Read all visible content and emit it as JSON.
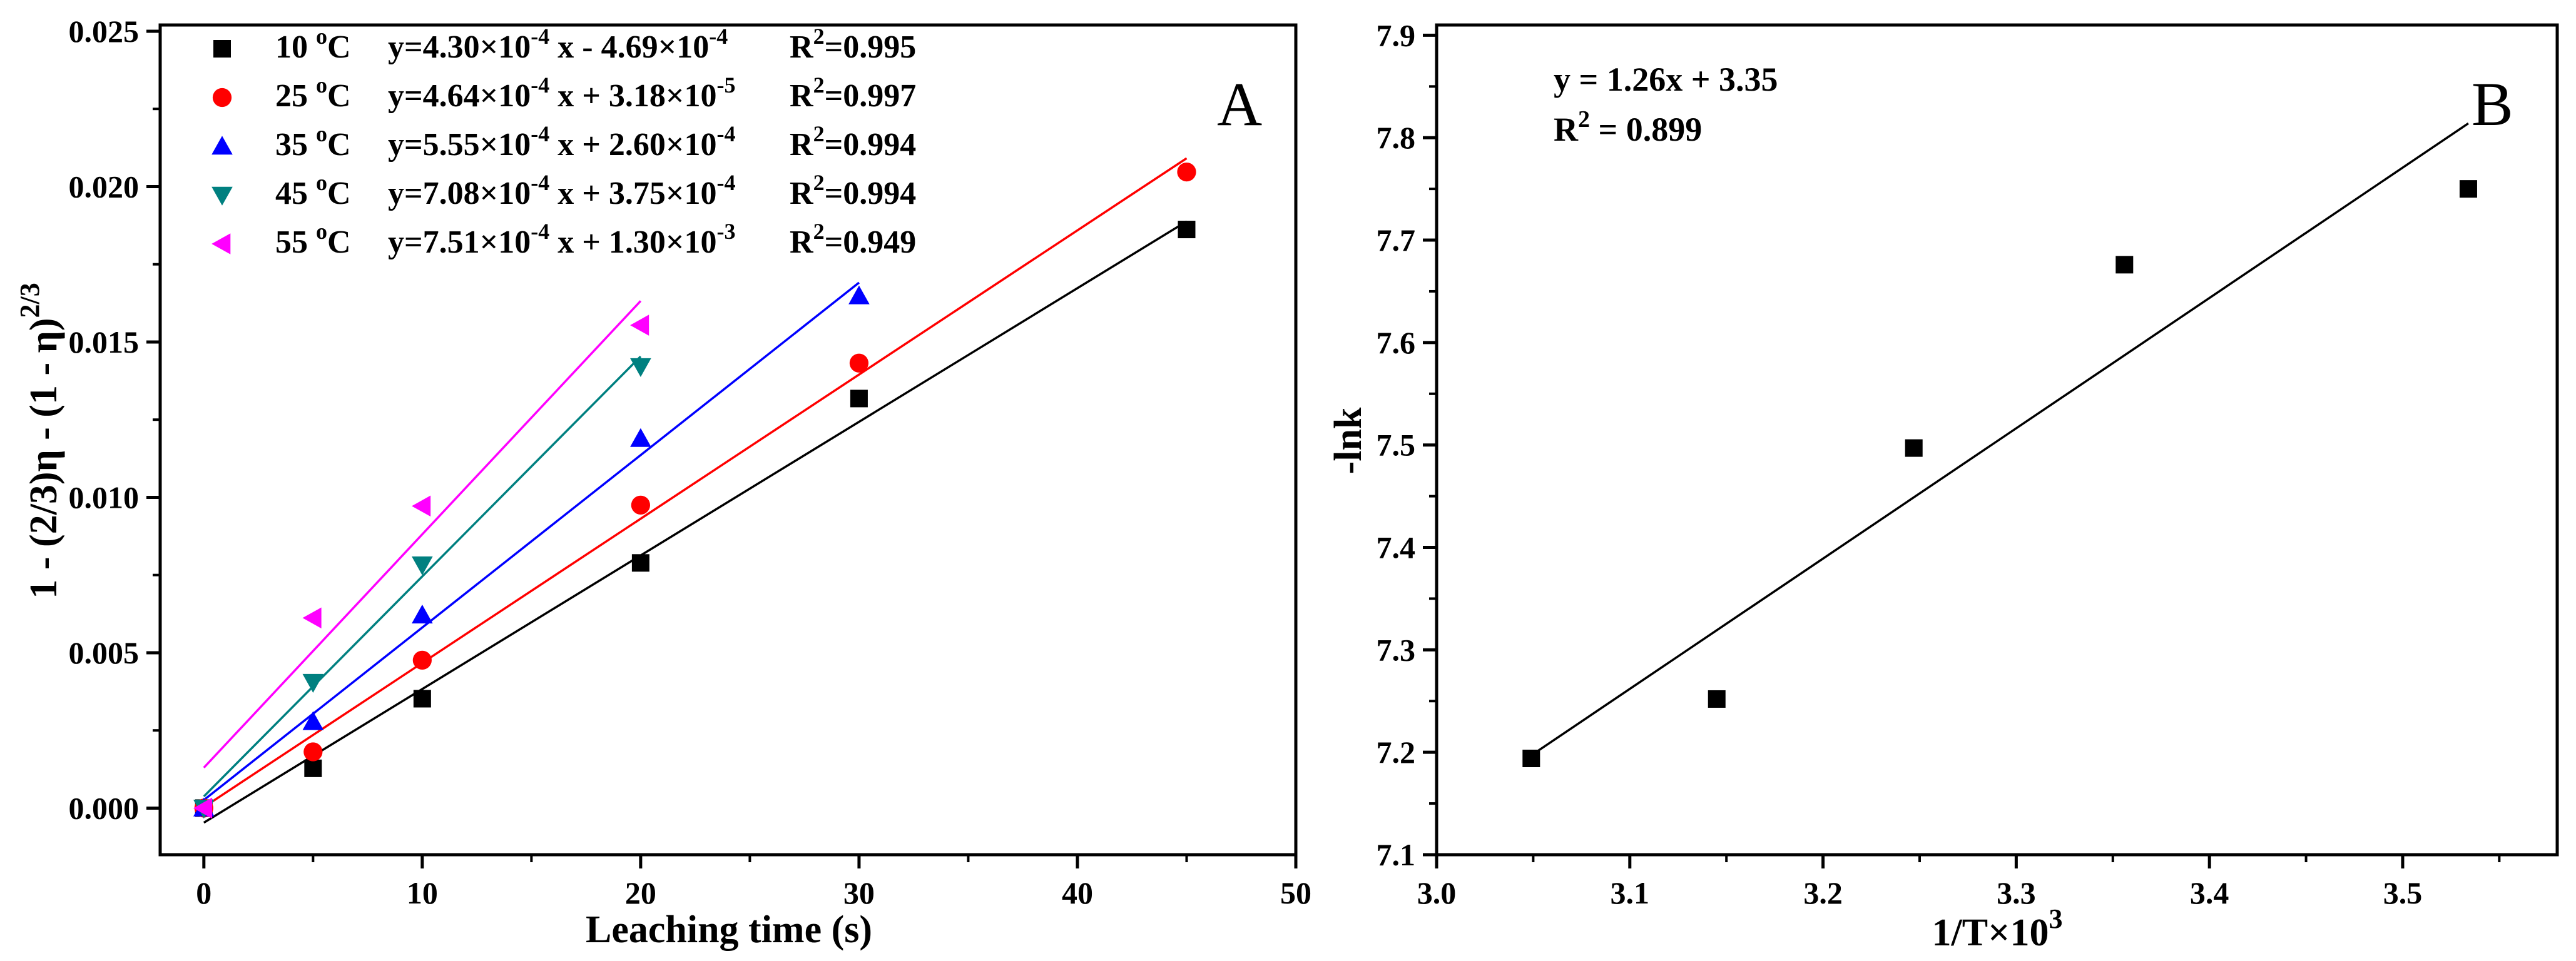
{
  "chart_data": [
    {
      "panel": "A",
      "type": "scatter",
      "panel_label": "A",
      "xlabel": "Leaching time (s)",
      "ylabel_main": "1 - (2/3)η - (1 - η)",
      "ylabel_exp": "2/3",
      "xlim": [
        -2,
        50
      ],
      "ylim": [
        -0.0015,
        0.0252
      ],
      "xticks": [
        0,
        10,
        20,
        30,
        40,
        50
      ],
      "xtick_labels": [
        "0",
        "10",
        "20",
        "30",
        "40",
        "50"
      ],
      "yticks": [
        0,
        0.005,
        0.01,
        0.015,
        0.02,
        0.025
      ],
      "ytick_labels": [
        "0.000",
        "0.005",
        "0.010",
        "0.015",
        "0.020",
        "0.025"
      ],
      "series": [
        {
          "name": "10 °C",
          "temp": "10",
          "marker": "square",
          "color": "#000000",
          "x": [
            0,
            5,
            10,
            20,
            30,
            45
          ],
          "y": [
            0.0,
            0.00128,
            0.00352,
            0.00789,
            0.01318,
            0.01862
          ],
          "fit": {
            "slope": 0.00043,
            "intercept": -0.000469,
            "x_range": [
              0,
              45
            ]
          },
          "eq": {
            "a": "4.30",
            "ae": "-4",
            "sign": "-",
            "b": "4.69",
            "be": "-4"
          },
          "r2": "0.995"
        },
        {
          "name": "25 °C",
          "temp": "25",
          "marker": "circle",
          "color": "#ff0000",
          "x": [
            0,
            5,
            10,
            20,
            30,
            45
          ],
          "y": [
            0.0,
            0.00181,
            0.00476,
            0.00975,
            0.01432,
            0.02047
          ],
          "fit": {
            "slope": 0.000464,
            "intercept": 3.18e-05,
            "x_range": [
              0,
              45
            ]
          },
          "eq": {
            "a": "4.64",
            "ae": "-4",
            "sign": "+",
            "b": "3.18",
            "be": "-5"
          },
          "r2": "0.997"
        },
        {
          "name": "35 °C",
          "temp": "35",
          "marker": "triangle-up",
          "color": "#0000ff",
          "x": [
            0,
            5,
            10,
            20,
            30
          ],
          "y": [
            0.0,
            0.00278,
            0.00621,
            0.01189,
            0.01648
          ],
          "fit": {
            "slope": 0.000555,
            "intercept": 0.00026,
            "x_range": [
              0,
              30
            ]
          },
          "eq": {
            "a": "5.55",
            "ae": "-4",
            "sign": "+",
            "b": "2.60",
            "be": "-4"
          },
          "r2": "0.994"
        },
        {
          "name": "45 °C",
          "temp": "45",
          "marker": "triangle-down",
          "color": "#008080",
          "x": [
            0,
            5,
            10,
            20
          ],
          "y": [
            0.0,
            0.00405,
            0.00783,
            0.01421
          ],
          "fit": {
            "slope": 0.000708,
            "intercept": 0.000375,
            "x_range": [
              0,
              20
            ]
          },
          "eq": {
            "a": "7.08",
            "ae": "-4",
            "sign": "+",
            "b": "3.75",
            "be": "-4"
          },
          "r2": "0.994"
        },
        {
          "name": "55 °C",
          "temp": "55",
          "marker": "triangle-left",
          "color": "#ff00ff",
          "x": [
            0,
            5,
            10,
            20
          ],
          "y": [
            0.0,
            0.00612,
            0.00972,
            0.01554
          ],
          "fit": {
            "slope": 0.000751,
            "intercept": 0.0013,
            "x_range": [
              0,
              20
            ]
          },
          "eq": {
            "a": "7.51",
            "ae": "-4",
            "sign": "+",
            "b": "1.30",
            "be": "-3"
          },
          "r2": "0.949"
        }
      ]
    },
    {
      "panel": "B",
      "type": "scatter",
      "panel_label": "B",
      "xlabel_main": "1/T×10",
      "xlabel_exp": "3",
      "ylabel": "-lnk",
      "xlim": [
        3.0,
        3.58
      ],
      "ylim": [
        7.1,
        7.91
      ],
      "xticks": [
        3.0,
        3.1,
        3.2,
        3.3,
        3.4,
        3.5
      ],
      "xtick_labels": [
        "3.0",
        "3.1",
        "3.2",
        "3.3",
        "3.4",
        "3.5"
      ],
      "yticks": [
        7.1,
        7.2,
        7.3,
        7.4,
        7.5,
        7.6,
        7.7,
        7.8,
        7.9
      ],
      "ytick_labels": [
        "7.1",
        "7.2",
        "7.3",
        "7.4",
        "7.5",
        "7.6",
        "7.7",
        "7.8",
        "7.9"
      ],
      "points": {
        "x": [
          3.049,
          3.145,
          3.247,
          3.356,
          3.534
        ],
        "y": [
          7.194,
          7.252,
          7.497,
          7.676,
          7.75
        ]
      },
      "fit_line": {
        "x": [
          3.049,
          3.534
        ],
        "y": [
          7.197,
          7.814
        ]
      },
      "annotation_eq": "y = 1.26x + 3.35",
      "annotation_r2_label": "R",
      "annotation_r2_exp": "2",
      "annotation_r2_value": " = 0.899"
    }
  ]
}
